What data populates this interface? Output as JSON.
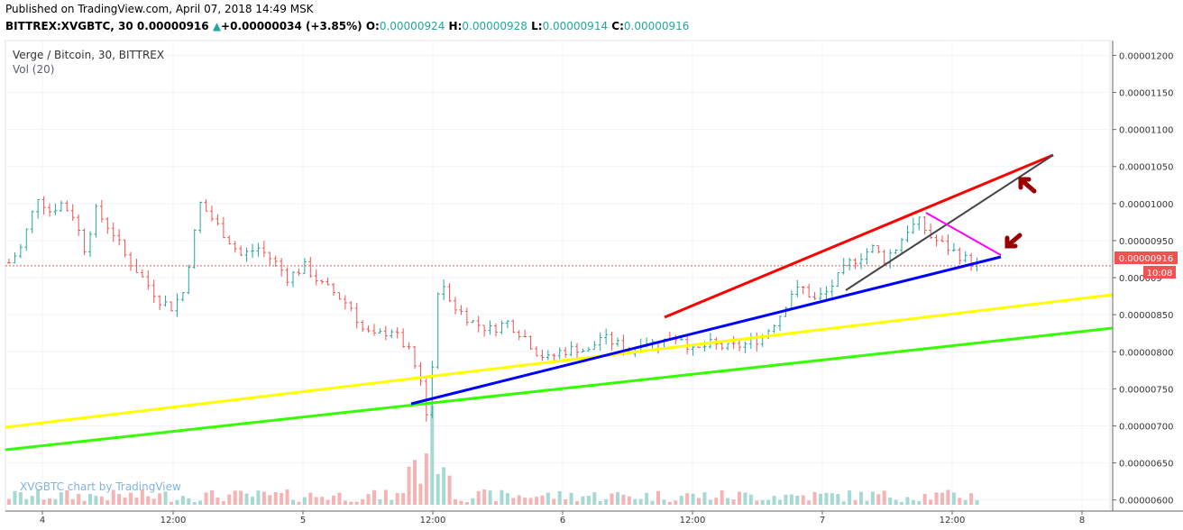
{
  "header": {
    "published": "Published on TradingView.com, April 07, 2018 14:49 MSK",
    "symbol": "BITTREX:XVGBTC, 30",
    "last_price": "0.00000916",
    "change": "+0.00000034 (+3.85%)",
    "open_label": "O:",
    "open": "0.00000924",
    "high_label": "H:",
    "high": "0.00000928",
    "low_label": "L:",
    "low": "0.00000914",
    "close_label": "C:",
    "close": "0.00000916"
  },
  "legend": {
    "title": "Verge / Bitcoin, 30, BITTREX",
    "volume": "Vol (20)"
  },
  "watermark": "XVGBTC chart by TradingView",
  "price_tag": {
    "value": "0.00000916",
    "time": "10:08"
  },
  "colors": {
    "up": "#26a69a",
    "down": "#ef5350",
    "red_line": "#ff0000",
    "blue_line": "#0000ff",
    "yellow_line": "#ffff00",
    "green_line": "#33ff00",
    "black_line": "#444444",
    "magenta_line": "#ff00ff",
    "arrow": "#990000",
    "price_tag": "#ef5350"
  },
  "chart_data": {
    "type": "candlestick",
    "yaxis_ticks": [
      "0.00001200",
      "0.00001150",
      "0.00001100",
      "0.00001050",
      "0.00001000",
      "0.00000950",
      "0.000009",
      "0.00000850",
      "0.00000800",
      "0.00000750",
      "0.00000700",
      "0.00000650",
      "0.00000600"
    ],
    "ylim": [
      5.85e-06,
      1.22e-05
    ],
    "x_ticks": [
      "4",
      "12:00",
      "5",
      "12:00",
      "6",
      "12:00",
      "7",
      "12:00",
      "8"
    ],
    "last_price_line": 9.16e-06,
    "price_path": [
      [
        0,
        920
      ],
      [
        2,
        940
      ],
      [
        5,
        1010
      ],
      [
        7,
        990
      ],
      [
        9,
        1000
      ],
      [
        11,
        985
      ],
      [
        13,
        940
      ],
      [
        15,
        990
      ],
      [
        18,
        960
      ],
      [
        20,
        930
      ],
      [
        23,
        900
      ],
      [
        26,
        870
      ],
      [
        28,
        860
      ],
      [
        30,
        880
      ],
      [
        33,
        1000
      ],
      [
        35,
        980
      ],
      [
        37,
        960
      ],
      [
        40,
        930
      ],
      [
        43,
        940
      ],
      [
        46,
        920
      ],
      [
        48,
        900
      ],
      [
        51,
        915
      ],
      [
        54,
        890
      ],
      [
        56,
        880
      ],
      [
        59,
        860
      ],
      [
        61,
        830
      ],
      [
        63,
        820
      ],
      [
        66,
        830
      ],
      [
        69,
        800
      ],
      [
        71,
        760
      ],
      [
        72,
        720
      ],
      [
        73,
        780
      ],
      [
        74,
        880
      ],
      [
        75,
        890
      ],
      [
        77,
        860
      ],
      [
        80,
        840
      ],
      [
        83,
        830
      ],
      [
        86,
        840
      ],
      [
        89,
        820
      ],
      [
        91,
        800
      ],
      [
        93,
        790
      ],
      [
        95,
        800
      ],
      [
        98,
        805
      ],
      [
        100,
        800
      ],
      [
        102,
        820
      ],
      [
        105,
        810
      ],
      [
        107,
        800
      ],
      [
        109,
        815
      ],
      [
        112,
        810
      ],
      [
        114,
        820
      ],
      [
        116,
        820
      ],
      [
        118,
        800
      ],
      [
        121,
        810
      ],
      [
        124,
        805
      ],
      [
        127,
        810
      ],
      [
        130,
        820
      ],
      [
        133,
        850
      ],
      [
        135,
        880
      ],
      [
        137,
        885
      ],
      [
        139,
        870
      ],
      [
        141,
        880
      ],
      [
        143,
        900
      ],
      [
        145,
        920
      ],
      [
        147,
        930
      ],
      [
        149,
        940
      ],
      [
        151,
        925
      ],
      [
        153,
        940
      ],
      [
        155,
        965
      ],
      [
        157,
        975
      ],
      [
        159,
        955
      ],
      [
        161,
        945
      ],
      [
        163,
        935
      ],
      [
        165,
        925
      ],
      [
        167,
        916
      ]
    ],
    "candle_count": 168
  }
}
